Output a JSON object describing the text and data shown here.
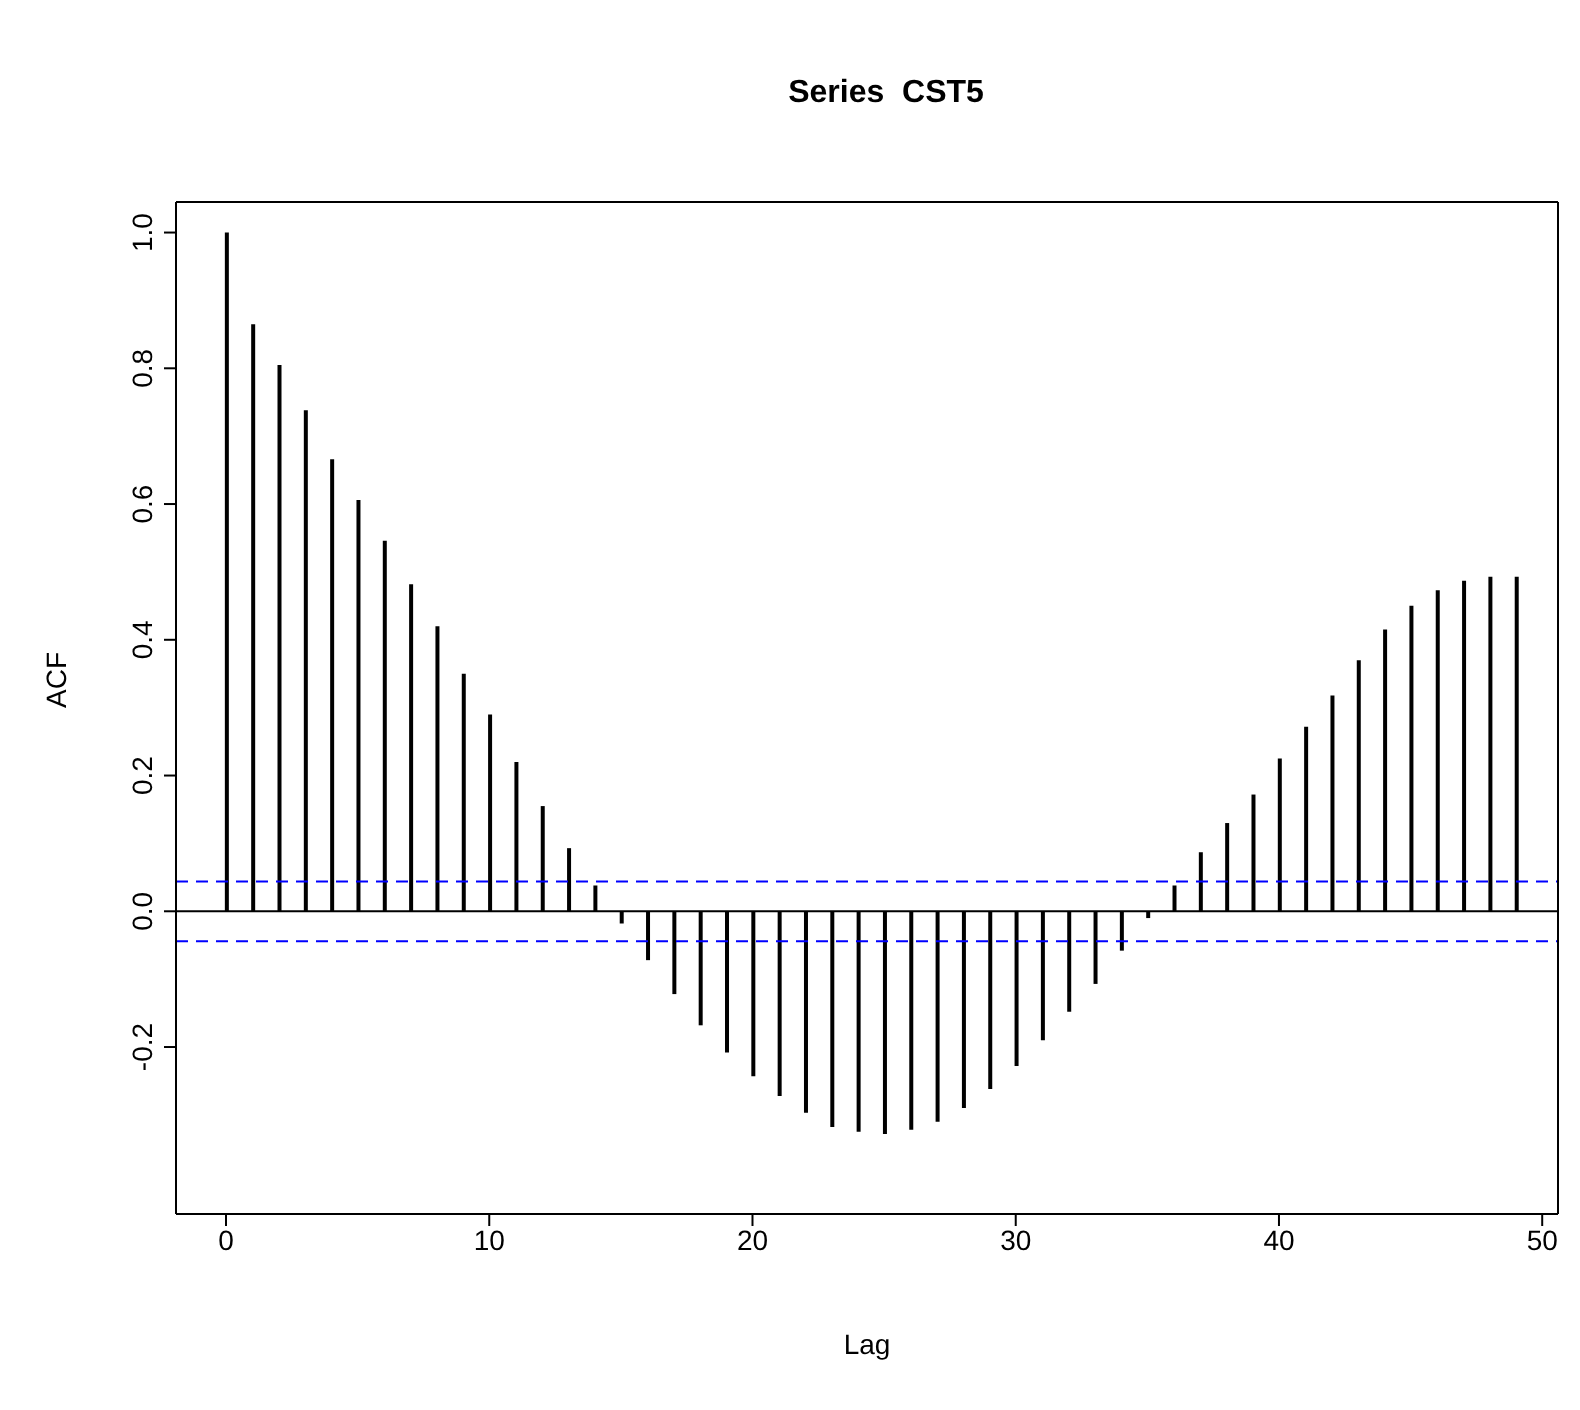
{
  "chart_data": {
    "type": "bar",
    "title": "Series  CST5",
    "xlabel": "Lag",
    "ylabel": "ACF",
    "x": [
      0,
      1,
      2,
      3,
      4,
      5,
      6,
      7,
      8,
      9,
      10,
      11,
      12,
      13,
      14,
      15,
      16,
      17,
      18,
      19,
      20,
      21,
      22,
      23,
      24,
      25,
      26,
      27,
      28,
      29,
      30,
      31,
      32,
      33,
      34,
      35,
      36,
      37,
      38,
      39,
      40,
      41,
      42,
      43,
      44,
      45,
      46,
      47,
      48,
      49
    ],
    "values": [
      1.0,
      0.865,
      0.805,
      0.738,
      0.666,
      0.606,
      0.546,
      0.482,
      0.42,
      0.35,
      0.29,
      0.22,
      0.155,
      0.093,
      0.038,
      -0.018,
      -0.072,
      -0.122,
      -0.168,
      -0.208,
      -0.243,
      -0.272,
      -0.297,
      -0.318,
      -0.325,
      -0.328,
      -0.322,
      -0.31,
      -0.29,
      -0.262,
      -0.228,
      -0.19,
      -0.148,
      -0.107,
      -0.058,
      -0.01,
      0.038,
      0.087,
      0.13,
      0.172,
      0.225,
      0.272,
      0.318,
      0.37,
      0.415,
      0.45,
      0.473,
      0.487,
      0.493,
      0.493
    ],
    "color": "#000000",
    "xlim": [
      -1.9,
      50.6
    ],
    "xticks": [
      0,
      10,
      20,
      30,
      40,
      50
    ],
    "ylim": [
      -0.446,
      1.045
    ],
    "yticks": [
      {
        "value": -0.2,
        "label": "-0.2"
      },
      {
        "value": 0,
        "label": "0.0"
      },
      {
        "value": 0.2,
        "label": "0.2"
      },
      {
        "value": 0.4,
        "label": "0.4"
      },
      {
        "value": 0.6,
        "label": "0.6"
      },
      {
        "value": 0.8,
        "label": "0.8"
      },
      {
        "value": 1.0,
        "label": "1.0"
      }
    ],
    "ref_lines": [
      {
        "axis": "y",
        "value": 0,
        "color": "#000000",
        "line_style": "solid"
      },
      {
        "axis": "y",
        "value": 0.044,
        "color": "#0000ff",
        "line_style": "dashed"
      },
      {
        "axis": "y",
        "value": -0.044,
        "color": "#0000ff",
        "line_style": "dashed"
      }
    ],
    "grid": false,
    "legend": false
  }
}
